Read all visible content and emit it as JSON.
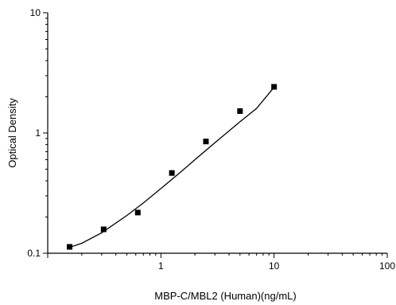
{
  "chart_data": {
    "type": "scatter",
    "title": "",
    "xlabel": "MBP-C/MBL2 (Human)(ng/mL)",
    "ylabel": "Optical Density",
    "x_scale": "log",
    "y_scale": "log",
    "xlim": [
      0.1,
      100
    ],
    "ylim": [
      0.1,
      10
    ],
    "x_ticks": [
      1,
      10,
      100
    ],
    "x_tick_labels": [
      "1",
      "10",
      "100"
    ],
    "y_ticks": [
      0.1,
      1,
      10
    ],
    "y_tick_labels": [
      "0.1",
      "1",
      "10"
    ],
    "grid": false,
    "legend": "none",
    "series": [
      {
        "x": [
          0.156,
          0.312,
          0.625,
          1.25,
          2.5,
          5,
          10
        ],
        "y": [
          0.113,
          0.158,
          0.218,
          0.465,
          0.85,
          1.52,
          2.42
        ]
      }
    ],
    "fit_curve": {
      "x": [
        0.156,
        0.2,
        0.3,
        0.5,
        0.7,
        1,
        1.5,
        2,
        3,
        4,
        5,
        7,
        10
      ],
      "y": [
        0.112,
        0.121,
        0.148,
        0.206,
        0.262,
        0.345,
        0.475,
        0.6,
        0.83,
        1.04,
        1.24,
        1.6,
        2.4
      ]
    },
    "marker_color": "#000000",
    "line_color": "#000000"
  }
}
